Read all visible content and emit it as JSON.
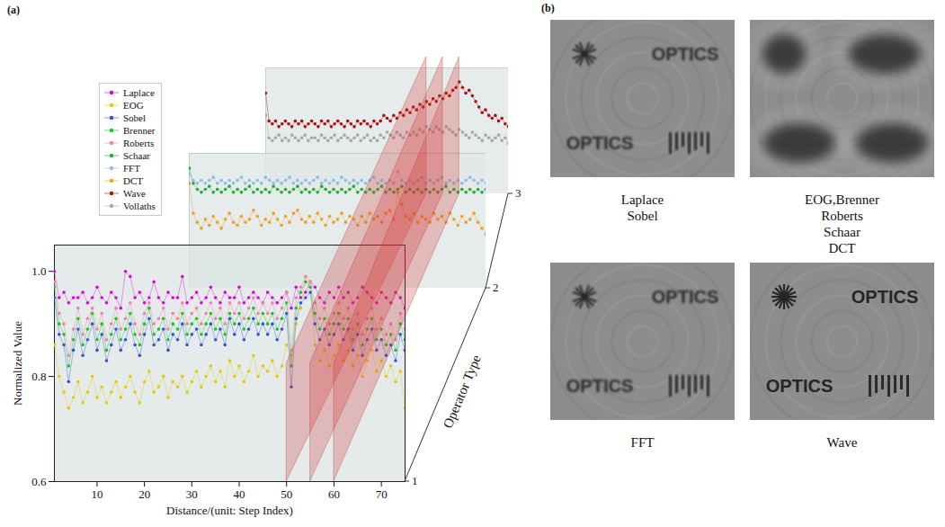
{
  "chart_data": {
    "type": "line",
    "title": "(a)",
    "x_label": "Distance/(unit: Step Index)",
    "y_label": "Normalized Value",
    "z_label": "Operator Type",
    "x": [
      1,
      2,
      3,
      4,
      5,
      6,
      7,
      8,
      9,
      10,
      11,
      12,
      13,
      14,
      15,
      16,
      17,
      18,
      19,
      20,
      21,
      22,
      23,
      24,
      25,
      26,
      27,
      28,
      29,
      30,
      31,
      32,
      33,
      34,
      35,
      36,
      37,
      38,
      39,
      40,
      41,
      42,
      43,
      44,
      45,
      46,
      47,
      48,
      49,
      50,
      51,
      52,
      53,
      54,
      55,
      56,
      57,
      58,
      59,
      60,
      61,
      62,
      63,
      64,
      65,
      66,
      67,
      68,
      69,
      70,
      71,
      72,
      73,
      74,
      75
    ],
    "xlim": [
      1,
      75
    ],
    "xticks": [
      10,
      20,
      30,
      40,
      50,
      60,
      70
    ],
    "ylim": [
      0.6,
      1.05
    ],
    "yticks": [
      0.6,
      0.8,
      {
        "value": 1,
        "label": "1.0"
      }
    ],
    "zticks": [
      1,
      2,
      3
    ],
    "highlight_x": [
      50,
      55,
      60
    ],
    "legend": "upper left",
    "marker": "dot",
    "line_style": "solid",
    "layers": [
      {
        "z": 1,
        "series": [
          {
            "name": "Laplace",
            "color": "#e000e0",
            "values": [
              1.0,
              0.95,
              0.96,
              0.94,
              0.95,
              0.95,
              0.96,
              0.94,
              0.95,
              0.97,
              0.95,
              0.94,
              0.96,
              0.95,
              0.93,
              1.0,
              0.99,
              0.95,
              0.96,
              0.94,
              0.95,
              0.98,
              0.95,
              0.94,
              0.96,
              0.95,
              0.95,
              0.99,
              0.94,
              0.95,
              0.96,
              0.94,
              0.95,
              0.97,
              0.95,
              0.94,
              0.96,
              0.95,
              0.95,
              0.97,
              0.94,
              0.95,
              0.96,
              0.95,
              0.94,
              0.96,
              0.95,
              0.94,
              0.95,
              0.96,
              0.93,
              0.97,
              0.95,
              0.96,
              0.98,
              0.97,
              0.95,
              0.94,
              0.96,
              0.95,
              0.97,
              0.95,
              0.96,
              0.94,
              0.95,
              0.97,
              0.96,
              0.95,
              0.94,
              0.96,
              0.95,
              0.94,
              0.96,
              0.95,
              0.93
            ]
          },
          {
            "name": "EOG",
            "color": "#e8c800",
            "values": [
              0.86,
              0.8,
              0.77,
              0.74,
              0.76,
              0.79,
              0.75,
              0.77,
              0.8,
              0.76,
              0.78,
              0.75,
              0.77,
              0.79,
              0.76,
              0.78,
              0.8,
              0.77,
              0.75,
              0.79,
              0.81,
              0.77,
              0.78,
              0.8,
              0.76,
              0.79,
              0.78,
              0.8,
              0.77,
              0.79,
              0.81,
              0.78,
              0.8,
              0.82,
              0.79,
              0.81,
              0.78,
              0.83,
              0.8,
              0.82,
              0.79,
              0.81,
              0.84,
              0.8,
              0.82,
              0.81,
              0.83,
              0.8,
              0.82,
              0.86,
              0.84,
              0.9,
              0.93,
              0.99,
              0.98,
              0.86,
              0.83,
              0.85,
              0.82,
              0.84,
              0.86,
              0.83,
              0.85,
              0.82,
              0.84,
              0.8,
              0.83,
              0.85,
              0.81,
              0.83,
              0.8,
              0.82,
              0.79,
              0.81,
              0.74
            ]
          },
          {
            "name": "Sobel",
            "color": "#3050e0",
            "values": [
              0.95,
              0.88,
              0.86,
              0.79,
              0.85,
              0.89,
              0.84,
              0.87,
              0.9,
              0.85,
              0.88,
              0.83,
              0.86,
              0.89,
              0.85,
              0.87,
              0.9,
              0.86,
              0.84,
              0.88,
              0.91,
              0.86,
              0.87,
              0.89,
              0.85,
              0.88,
              0.87,
              0.9,
              0.86,
              0.88,
              0.89,
              0.86,
              0.88,
              0.9,
              0.87,
              0.89,
              0.86,
              0.91,
              0.88,
              0.9,
              0.87,
              0.89,
              0.91,
              0.88,
              0.9,
              0.88,
              0.9,
              0.87,
              0.89,
              0.92,
              0.78,
              0.91,
              0.94,
              0.95,
              0.96,
              0.9,
              0.87,
              0.89,
              0.86,
              0.88,
              0.9,
              0.87,
              0.89,
              0.85,
              0.88,
              0.84,
              0.87,
              0.89,
              0.85,
              0.87,
              0.84,
              0.86,
              0.83,
              0.88,
              0.85
            ]
          },
          {
            "name": "Brenner",
            "color": "#20c020",
            "values": [
              0.97,
              0.9,
              0.88,
              0.82,
              0.87,
              0.91,
              0.86,
              0.89,
              0.92,
              0.87,
              0.9,
              0.85,
              0.88,
              0.91,
              0.87,
              0.89,
              0.92,
              0.88,
              0.86,
              0.9,
              0.93,
              0.88,
              0.89,
              0.91,
              0.87,
              0.9,
              0.89,
              0.92,
              0.88,
              0.9,
              0.91,
              0.88,
              0.9,
              0.92,
              0.89,
              0.91,
              0.88,
              0.92,
              0.9,
              0.92,
              0.89,
              0.91,
              0.93,
              0.9,
              0.92,
              0.9,
              0.92,
              0.89,
              0.91,
              0.94,
              0.82,
              0.93,
              0.96,
              0.98,
              0.97,
              0.92,
              0.89,
              0.91,
              0.88,
              0.9,
              0.92,
              0.89,
              0.91,
              0.87,
              0.9,
              0.86,
              0.89,
              0.91,
              0.87,
              0.89,
              0.86,
              0.88,
              0.85,
              0.9,
              0.87
            ]
          },
          {
            "name": "Roberts",
            "color": "#f080b0",
            "values": [
              0.98,
              0.92,
              0.9,
              0.84,
              0.89,
              0.93,
              0.88,
              0.91,
              0.93,
              0.89,
              0.92,
              0.87,
              0.9,
              0.93,
              0.89,
              0.91,
              0.94,
              0.9,
              0.88,
              0.92,
              0.94,
              0.9,
              0.91,
              0.93,
              0.89,
              0.92,
              0.91,
              0.94,
              0.9,
              0.92,
              0.93,
              0.9,
              0.92,
              0.94,
              0.91,
              0.93,
              0.9,
              0.94,
              0.92,
              0.94,
              0.91,
              0.93,
              0.95,
              0.92,
              0.94,
              0.92,
              0.94,
              0.91,
              0.93,
              0.96,
              0.85,
              0.95,
              0.97,
              0.99,
              0.98,
              0.94,
              0.91,
              0.93,
              0.9,
              0.92,
              0.94,
              0.91,
              0.93,
              0.89,
              0.92,
              0.88,
              0.91,
              0.93,
              0.89,
              0.91,
              0.88,
              0.9,
              0.87,
              0.92,
              0.89
            ]
          }
        ]
      },
      {
        "z": 2,
        "series": [
          {
            "name": "Schaar",
            "color": "#20b030",
            "values": [
              1.0,
              0.95,
              0.93,
              0.92,
              0.93,
              0.94,
              0.92,
              0.93,
              0.92,
              0.93,
              0.94,
              0.92,
              0.93,
              0.92,
              0.93,
              0.94,
              0.92,
              0.93,
              0.92,
              0.93,
              0.92,
              0.94,
              0.93,
              0.92,
              0.93,
              0.92,
              0.93,
              0.94,
              0.92,
              0.93,
              0.92,
              0.93,
              0.92,
              0.94,
              0.93,
              0.92,
              0.93,
              0.92,
              0.93,
              0.92,
              0.93,
              0.94,
              0.92,
              0.93,
              0.92,
              0.93,
              0.92,
              0.93,
              0.94,
              0.92,
              0.93,
              0.92,
              0.93,
              0.94,
              0.92,
              0.93,
              0.92,
              0.93,
              0.92,
              0.93,
              0.92,
              0.93,
              0.92,
              0.93,
              0.94,
              0.92,
              0.93,
              0.92,
              0.93,
              0.92,
              0.93,
              0.92,
              0.93,
              0.92,
              0.93
            ]
          },
          {
            "name": "FFT",
            "color": "#90bde0",
            "values": [
              0.98,
              0.96,
              0.95,
              0.96,
              0.95,
              0.96,
              0.97,
              0.95,
              0.96,
              0.95,
              0.96,
              0.95,
              0.96,
              0.97,
              0.95,
              0.96,
              0.95,
              0.96,
              0.95,
              0.97,
              0.96,
              0.95,
              0.96,
              0.95,
              0.96,
              0.97,
              0.95,
              0.96,
              0.95,
              0.96,
              0.95,
              0.96,
              0.97,
              0.95,
              0.96,
              0.95,
              0.96,
              0.95,
              0.97,
              0.96,
              0.95,
              0.96,
              0.95,
              0.96,
              0.95,
              0.96,
              0.97,
              0.95,
              0.96,
              0.95,
              0.96,
              0.95,
              0.99,
              0.96,
              0.95,
              0.96,
              0.95,
              0.96,
              0.97,
              0.95,
              0.96,
              0.95,
              0.96,
              0.97,
              0.95,
              0.96,
              0.95,
              0.96,
              0.95,
              0.96,
              0.97,
              0.96,
              0.95,
              0.96,
              0.95
            ]
          },
          {
            "name": "DCT",
            "color": "#f0a020",
            "values": [
              0.95,
              0.85,
              0.82,
              0.8,
              0.83,
              0.81,
              0.84,
              0.82,
              0.8,
              0.83,
              0.85,
              0.82,
              0.81,
              0.84,
              0.82,
              0.83,
              0.86,
              0.84,
              0.81,
              0.83,
              0.82,
              0.85,
              0.83,
              0.81,
              0.84,
              0.82,
              0.85,
              0.86,
              0.83,
              0.82,
              0.84,
              0.82,
              0.85,
              0.83,
              0.81,
              0.84,
              0.82,
              0.83,
              0.85,
              0.82,
              0.84,
              0.83,
              0.81,
              0.84,
              0.82,
              0.85,
              0.83,
              0.84,
              0.82,
              0.85,
              0.86,
              0.83,
              0.92,
              0.88,
              0.84,
              0.83,
              0.85,
              0.82,
              0.84,
              0.83,
              0.82,
              0.85,
              0.83,
              0.84,
              0.82,
              0.85,
              0.83,
              0.81,
              0.84,
              0.82,
              0.83,
              0.85,
              0.82,
              0.8,
              0.78
            ]
          }
        ]
      },
      {
        "z": 3,
        "series": [
          {
            "name": "Wave",
            "color": "#b01010",
            "values": [
              0.96,
              0.86,
              0.85,
              0.86,
              0.84,
              0.85,
              0.86,
              0.85,
              0.84,
              0.86,
              0.85,
              0.86,
              0.84,
              0.85,
              0.86,
              0.85,
              0.84,
              0.86,
              0.85,
              0.86,
              0.84,
              0.85,
              0.86,
              0.85,
              0.84,
              0.86,
              0.85,
              0.84,
              0.86,
              0.85,
              0.86,
              0.85,
              0.84,
              0.86,
              0.85,
              0.86,
              0.88,
              0.87,
              0.86,
              0.88,
              0.87,
              0.89,
              0.88,
              0.9,
              0.89,
              0.91,
              0.9,
              0.92,
              0.91,
              0.93,
              0.92,
              0.94,
              0.93,
              0.95,
              0.94,
              0.96,
              0.95,
              0.97,
              0.98,
              1.0,
              0.98,
              0.96,
              0.97,
              0.95,
              0.93,
              0.91,
              0.89,
              0.9,
              0.88,
              0.87,
              0.88,
              0.86,
              0.87,
              0.85,
              0.84
            ]
          },
          {
            "name": "Vollaths",
            "color": "#a8a8a8",
            "values": [
              0.88,
              0.8,
              0.79,
              0.8,
              0.81,
              0.79,
              0.8,
              0.79,
              0.81,
              0.8,
              0.79,
              0.8,
              0.81,
              0.79,
              0.8,
              0.8,
              0.79,
              0.81,
              0.8,
              0.79,
              0.8,
              0.81,
              0.79,
              0.8,
              0.81,
              0.8,
              0.79,
              0.8,
              0.81,
              0.79,
              0.8,
              0.81,
              0.79,
              0.8,
              0.79,
              0.81,
              0.8,
              0.82,
              0.81,
              0.8,
              0.82,
              0.81,
              0.8,
              0.82,
              0.81,
              0.82,
              0.81,
              0.83,
              0.82,
              0.84,
              0.83,
              0.82,
              0.84,
              0.83,
              0.82,
              0.84,
              0.83,
              0.82,
              0.81,
              0.83,
              0.82,
              0.81,
              0.8,
              0.82,
              0.81,
              0.8,
              0.79,
              0.81,
              0.8,
              0.79,
              0.8,
              0.81,
              0.79,
              0.8,
              0.78
            ]
          }
        ]
      }
    ]
  },
  "panel_b": {
    "label": "(b)",
    "images": [
      {
        "caption": [
          "Laplace",
          "Sobel"
        ],
        "image_texts": [
          "OPTICS",
          "OPTICS"
        ]
      },
      {
        "caption": [
          "EOG,Brenner",
          "Roberts",
          "Schaar",
          "DCT"
        ],
        "image_texts": []
      },
      {
        "caption": [
          "FFT"
        ],
        "image_texts": [
          "OPTICS",
          "OPTICS"
        ]
      },
      {
        "caption": [
          "Wave"
        ],
        "image_texts": [
          "OPTICS",
          "OPTICS"
        ]
      }
    ]
  }
}
